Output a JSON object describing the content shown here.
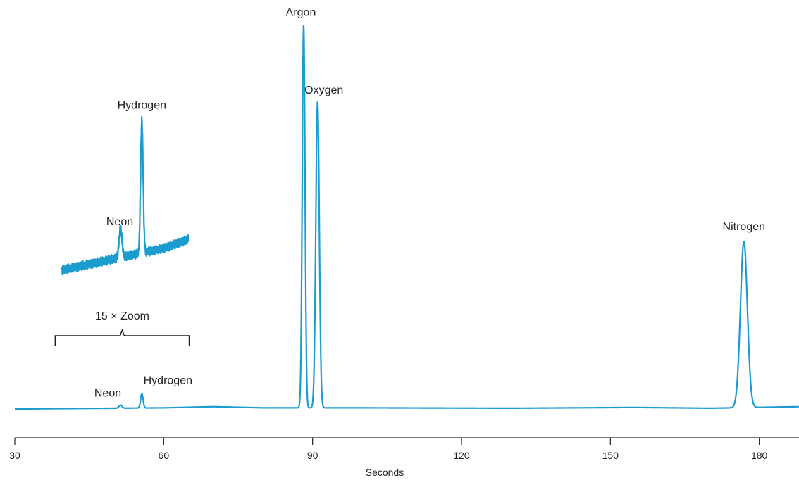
{
  "colors": {
    "trace": "#1b9ccf",
    "text": "#231f20",
    "axis": "#231f20",
    "background": "#ffffff"
  },
  "chart_data": {
    "type": "line",
    "title": "",
    "xlabel": "Seconds",
    "ylabel": "",
    "xlim": [
      30,
      188
    ],
    "ylim": [
      0,
      100
    ],
    "xticks": [
      30,
      60,
      90,
      120,
      150,
      180
    ],
    "grid": false,
    "legend": "none",
    "baseline": [
      {
        "x": 30,
        "y": 0.0
      },
      {
        "x": 45,
        "y": 0.15
      },
      {
        "x": 60,
        "y": 0.3
      },
      {
        "x": 70,
        "y": 0.6
      },
      {
        "x": 80,
        "y": 0.3
      },
      {
        "x": 100,
        "y": 0.3
      },
      {
        "x": 130,
        "y": 0.2
      },
      {
        "x": 155,
        "y": 0.4
      },
      {
        "x": 170,
        "y": 0.2
      },
      {
        "x": 188,
        "y": 0.6
      }
    ],
    "peaks": [
      {
        "name": "Neon",
        "x": 51.3,
        "height": 0.8,
        "width": 0.3
      },
      {
        "name": "Hydrogen",
        "x": 55.6,
        "height": 3.7,
        "width": 0.25
      },
      {
        "name": "Argon",
        "x": 88.2,
        "height": 100,
        "width": 0.28
      },
      {
        "name": "Oxygen",
        "x": 91.0,
        "height": 80,
        "width": 0.35
      },
      {
        "name": "Nitrogen",
        "x": 176.9,
        "height": 43.5,
        "width": 0.7
      }
    ],
    "peak_labels": [
      "Neon",
      "Hydrogen",
      "Argon",
      "Oxygen",
      "Nitrogen"
    ],
    "inset": {
      "zoom_label": "15 × Zoom",
      "x_range": [
        38,
        65
      ],
      "zoom_factor": 15,
      "peak_labels": [
        "Neon",
        "Hydrogen"
      ]
    }
  }
}
